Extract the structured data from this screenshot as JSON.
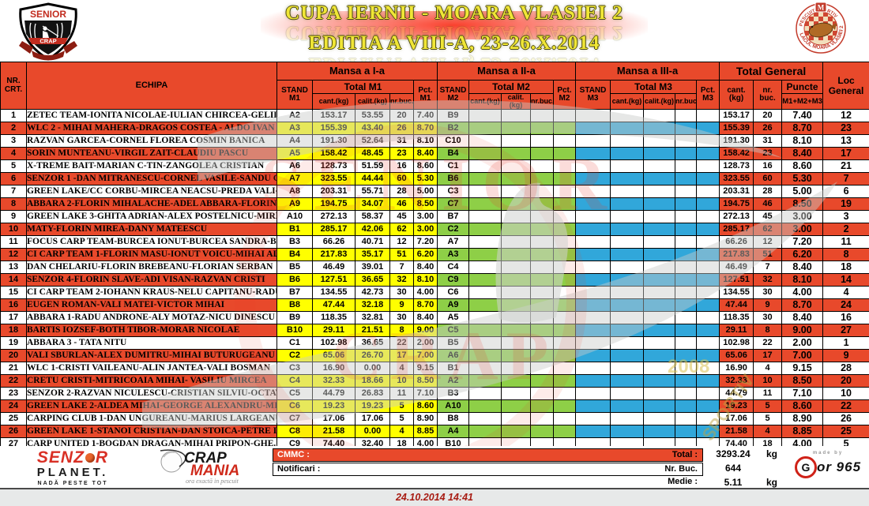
{
  "title": {
    "line1": "CUPA IERNII - MOARA VLASIEI 2",
    "line2": "EDITIA  A VIII-A, 23-26.X.2014"
  },
  "logos": {
    "senior_crap": {
      "top": "SENIOR",
      "banner": "CRAP"
    },
    "lake_badge": {
      "arc_top": "PESCUIT SPORTIV",
      "arc_bottom": "LACUL MOARA VLASIEI 2",
      "crest": "M"
    },
    "senzor_planet": {
      "line1a": "SENZ",
      "line1b": "R",
      "line2": "PLANET.",
      "line3": "NADĂ PESTE TOT"
    },
    "crap_mania": {
      "word1": "CRAP",
      "word2": "MANIA",
      "tagline": "ora exactă in pescuit"
    },
    "gor": {
      "made_by": "made by",
      "g": "G",
      "rest": "or 965"
    }
  },
  "watermark": {
    "word1": "SENIOR",
    "word2": "CRAP",
    "year": "2008",
    "sportiv": "SPORTIV"
  },
  "table": {
    "headers": {
      "nr": "NR. CRT.",
      "echipa": "ECHIPA",
      "mansa1": "Mansa a I-a",
      "mansa2": "Mansa a II-a",
      "mansa3": "Mansa a III-a",
      "total_general": "Total General",
      "stand_m1": "STAND M1",
      "total_m1": "Total M1",
      "pct_m1": "Pct. M1",
      "stand_m2": "STAND M2",
      "total_m2": "Total M2",
      "pct_m2": "Pct. M2",
      "stand_m3": "STAND M3",
      "total_m3": "Total M3",
      "pct_m3": "Pct. M3",
      "cant": "cant.(kg)",
      "calit": "calit.(kg)",
      "nrbuc": "nr.buc.",
      "tg_cant": "cant. (kg)",
      "tg_nrbuc": "nr. buc.",
      "puncte": "Puncte",
      "puncte_sub": "M1+M2+M3",
      "loc": "Loc General"
    },
    "rows": [
      {
        "nr": "1",
        "team": "ZETEC TEAM-IONITA NICOLAE-IULIAN CHIRCEA-GELIL MORRIS",
        "m1": {
          "stand": "A2",
          "cant": "153.17",
          "calit": "53.55",
          "buc": "20",
          "pct": "7.40"
        },
        "m2": {
          "stand": "B9"
        },
        "tg": {
          "cant": "153.17",
          "buc": "20",
          "pct": "7.40"
        },
        "loc": "12"
      },
      {
        "nr": "2",
        "team": "WLC 2 - MIHAI MAHERA-DRAGOS COSTEA - ALDO IVAN",
        "m1": {
          "stand": "A3",
          "cant": "155.39",
          "calit": "43.40",
          "buc": "26",
          "pct": "8.70"
        },
        "m2": {
          "stand": "B2"
        },
        "tg": {
          "cant": "155.39",
          "buc": "26",
          "pct": "8.70"
        },
        "loc": "23"
      },
      {
        "nr": "3",
        "team": "RAZVAN GARCEA-CORNEL FLOREA COSMIN BANICA",
        "m1": {
          "stand": "A4",
          "cant": "191.30",
          "calit": "52.64",
          "buc": "31",
          "pct": "8.10"
        },
        "m2": {
          "stand": "C10"
        },
        "tg": {
          "cant": "191.30",
          "buc": "31",
          "pct": "8.10"
        },
        "loc": "13"
      },
      {
        "nr": "4",
        "team": "SORIN MUNTEANU-VIRGIL ZAIT-CLAUDIU PASCU",
        "m1": {
          "stand": "A5",
          "cant": "158.42",
          "calit": "48.45",
          "buc": "23",
          "pct": "8.40"
        },
        "m2": {
          "stand": "B4"
        },
        "tg": {
          "cant": "158.42",
          "buc": "23",
          "pct": "8.40"
        },
        "loc": "17"
      },
      {
        "nr": "5",
        "team": "X-TREME BAIT-MARIAN C-TIN-ZANGOLEA CRISTIAN",
        "m1": {
          "stand": "A6",
          "cant": "128.73",
          "calit": "51.59",
          "buc": "16",
          "pct": "8.60"
        },
        "m2": {
          "stand": "C1"
        },
        "tg": {
          "cant": "128.73",
          "buc": "16",
          "pct": "8.60"
        },
        "loc": "21"
      },
      {
        "nr": "6",
        "team": "SENZOR 1 -DAN MITRANESCU-CORNEL VASILE-SANDU CORNEL",
        "m1": {
          "stand": "A7",
          "cant": "323.55",
          "calit": "44.44",
          "buc": "60",
          "pct": "5.30"
        },
        "m2": {
          "stand": "B6"
        },
        "tg": {
          "cant": "323.55",
          "buc": "60",
          "pct": "5.30"
        },
        "loc": "7"
      },
      {
        "nr": "7",
        "team": "GREEN LAKE/CC CORBU-MIRCEA NEACSU-PREDA VALI-DAN ARG",
        "m1": {
          "stand": "A8",
          "cant": "203.31",
          "calit": "55.71",
          "buc": "28",
          "pct": "5.00"
        },
        "m2": {
          "stand": "C3"
        },
        "tg": {
          "cant": "203.31",
          "buc": "28",
          "pct": "5.00"
        },
        "loc": "6"
      },
      {
        "nr": "8",
        "team": "ABBARA 2-FLORIN MIHALACHE-ADEL ABBARA-FLORIN PETCU",
        "m1": {
          "stand": "A9",
          "cant": "194.75",
          "calit": "34.07",
          "buc": "46",
          "pct": "8.50"
        },
        "m2": {
          "stand": "C7"
        },
        "tg": {
          "cant": "194.75",
          "buc": "46",
          "pct": "8.50"
        },
        "loc": "19"
      },
      {
        "nr": "9",
        "team": "GREEN LAKE 3-GHITA ADRIAN-ALEX POSTELNICU-MIREA CATALI",
        "m1": {
          "stand": "A10",
          "cant": "272.13",
          "calit": "58.37",
          "buc": "45",
          "pct": "3.00"
        },
        "m2": {
          "stand": "B7"
        },
        "tg": {
          "cant": "272.13",
          "buc": "45",
          "pct": "3.00"
        },
        "loc": "3"
      },
      {
        "nr": "10",
        "team": "MATY-FLORIN MIREA-DANY MATEESCU",
        "m1": {
          "stand": "B1",
          "cant": "285.17",
          "calit": "42.06",
          "buc": "62",
          "pct": "3.00"
        },
        "m2": {
          "stand": "C2"
        },
        "tg": {
          "cant": "285.17",
          "buc": "62",
          "pct": "3.00"
        },
        "loc": "2"
      },
      {
        "nr": "11",
        "team": "FOCUS CARP TEAM-BURCEA IONUT-BURCEA SANDRA-BEBE MOIS",
        "m1": {
          "stand": "B3",
          "cant": "66.26",
          "calit": "40.71",
          "buc": "12",
          "pct": "7.20"
        },
        "m2": {
          "stand": "A7"
        },
        "tg": {
          "cant": "66.26",
          "buc": "12",
          "pct": "7.20"
        },
        "loc": "11"
      },
      {
        "nr": "12",
        "team": "CI CARP TEAM 1-FLORIN MASU-IONUT VOICU-MIHAI ALEX.",
        "m1": {
          "stand": "B4",
          "cant": "217.83",
          "calit": "35.17",
          "buc": "51",
          "pct": "6.20"
        },
        "m2": {
          "stand": "A3"
        },
        "tg": {
          "cant": "217.83",
          "buc": "51",
          "pct": "6.20"
        },
        "loc": "8"
      },
      {
        "nr": "13",
        "team": "DAN CHELARIU-FLORIN BREBEANU-FLORIAN SERBAN",
        "m1": {
          "stand": "B5",
          "cant": "46.49",
          "calit": "39.01",
          "buc": "7",
          "pct": "8.40"
        },
        "m2": {
          "stand": "C4"
        },
        "tg": {
          "cant": "46.49",
          "buc": "7",
          "pct": "8.40"
        },
        "loc": "18"
      },
      {
        "nr": "14",
        "team": "SENZOR 4-FLORIN SLAVE-ADI VISAN-RAZVAN CRISTI",
        "m1": {
          "stand": "B6",
          "cant": "127.51",
          "calit": "36.65",
          "buc": "32",
          "pct": "8.10"
        },
        "m2": {
          "stand": "C9"
        },
        "tg": {
          "cant": "127.51",
          "buc": "32",
          "pct": "8.10"
        },
        "loc": "14"
      },
      {
        "nr": "15",
        "team": "CI CARP TEAM 2-IOHANN KRAUS-NELU CAPITANU-RADU BADIC.",
        "m1": {
          "stand": "B7",
          "cant": "134.55",
          "calit": "42.73",
          "buc": "30",
          "pct": "4.00"
        },
        "m2": {
          "stand": "C6"
        },
        "tg": {
          "cant": "134.55",
          "buc": "30",
          "pct": "4.00"
        },
        "loc": "4"
      },
      {
        "nr": "16",
        "team": "EUGEN ROMAN-VALI MATEI-VICTOR MIHAI",
        "m1": {
          "stand": "B8",
          "cant": "47.44",
          "calit": "32.18",
          "buc": "9",
          "pct": "8.70"
        },
        "m2": {
          "stand": "A9"
        },
        "tg": {
          "cant": "47.44",
          "buc": "9",
          "pct": "8.70"
        },
        "loc": "24"
      },
      {
        "nr": "17",
        "team": "ABBARA 1-RADU ANDRONE-ALY MOTAZ-NICU DINESCU",
        "m1": {
          "stand": "B9",
          "cant": "118.35",
          "calit": "32.81",
          "buc": "30",
          "pct": "8.40"
        },
        "m2": {
          "stand": "A5"
        },
        "tg": {
          "cant": "118.35",
          "buc": "30",
          "pct": "8.40"
        },
        "loc": "16"
      },
      {
        "nr": "18",
        "team": "BARTIS IOZSEF-BOTH TIBOR-MORAR NICOLAE",
        "m1": {
          "stand": "B10",
          "cant": "29.11",
          "calit": "21.51",
          "buc": "8",
          "pct": "9.00"
        },
        "m2": {
          "stand": "C5"
        },
        "tg": {
          "cant": "29.11",
          "buc": "8",
          "pct": "9.00"
        },
        "loc": "27"
      },
      {
        "nr": "19",
        "team": "ABBARA 3 - TATA NITU",
        "m1": {
          "stand": "C1",
          "cant": "102.98",
          "calit": "36.65",
          "buc": "22",
          "pct": "2.00"
        },
        "m2": {
          "stand": "B5"
        },
        "tg": {
          "cant": "102.98",
          "buc": "22",
          "pct": "2.00"
        },
        "loc": "1"
      },
      {
        "nr": "20",
        "team": "VALI SBURLAN-ALEX DUMITRU-MIHAI BUTURUGEANU",
        "m1": {
          "stand": "C2",
          "cant": "65.06",
          "calit": "26.70",
          "buc": "17",
          "pct": "7.00"
        },
        "m2": {
          "stand": "A6"
        },
        "tg": {
          "cant": "65.06",
          "buc": "17",
          "pct": "7.00"
        },
        "loc": "9"
      },
      {
        "nr": "21",
        "team": "WLC 1-CRISTI VAILEANU-ALIN JANTEA-VALI BOSMAN",
        "m1": {
          "stand": "C3",
          "cant": "16.90",
          "calit": "0.00",
          "buc": "4",
          "pct": "9.15"
        },
        "m2": {
          "stand": "B1"
        },
        "tg": {
          "cant": "16.90",
          "buc": "4",
          "pct": "9.15"
        },
        "loc": "28"
      },
      {
        "nr": "22",
        "team": "CRETU CRISTI-MITRICOAIA MIHAI- VASILIU MIRCEA",
        "m1": {
          "stand": "C4",
          "cant": "32.33",
          "calit": "18.66",
          "buc": "10",
          "pct": "8.50"
        },
        "m2": {
          "stand": "A2"
        },
        "tg": {
          "cant": "32.33",
          "buc": "10",
          "pct": "8.50"
        },
        "loc": "20"
      },
      {
        "nr": "23",
        "team": "SENZOR 2-RAZVAN NICULESCU-CRISTIAN SILVIU-OCTAVIAN VAL",
        "m1": {
          "stand": "C5",
          "cant": "44.79",
          "calit": "26.83",
          "buc": "11",
          "pct": "7.10"
        },
        "m2": {
          "stand": "B3"
        },
        "tg": {
          "cant": "44.79",
          "buc": "11",
          "pct": "7.10"
        },
        "loc": "10"
      },
      {
        "nr": "24",
        "team": "GREEN LAKE 2-ALDEA MIHAI-GEORGE ALEXANDRU-MIHAI MLAD",
        "m1": {
          "stand": "C6",
          "cant": "19.23",
          "calit": "19.23",
          "buc": "5",
          "pct": "8.60"
        },
        "m2": {
          "stand": "A10"
        },
        "tg": {
          "cant": "19.23",
          "buc": "5",
          "pct": "8.60"
        },
        "loc": "22"
      },
      {
        "nr": "25",
        "team": "CARPING CLUB 1-DAN UNGUREANU-MARIUS LARGEANU",
        "m1": {
          "stand": "C7",
          "cant": "17.06",
          "calit": "17.06",
          "buc": "5",
          "pct": "8.90"
        },
        "m2": {
          "stand": "B8"
        },
        "tg": {
          "cant": "17.06",
          "buc": "5",
          "pct": "8.90"
        },
        "loc": "26"
      },
      {
        "nr": "26",
        "team": "GREEN LAKE 1-STANOI CRISTIAN-DAN STOICA-PETRE IULIAN",
        "m1": {
          "stand": "C8",
          "cant": "21.58",
          "calit": "0.00",
          "buc": "4",
          "pct": "8.85"
        },
        "m2": {
          "stand": "A4"
        },
        "tg": {
          "cant": "21.58",
          "buc": "4",
          "pct": "8.85"
        },
        "loc": "25"
      },
      {
        "nr": "27",
        "team": "CARP UNITED 1-BOGDAN DRAGAN-MIHAI PRIPON-GHE. CLAMPA",
        "m1": {
          "stand": "C9",
          "cant": "74.40",
          "calit": "32.40",
          "buc": "18",
          "pct": "4.00"
        },
        "m2": {
          "stand": "B10"
        },
        "tg": {
          "cant": "74.40",
          "buc": "18",
          "pct": "4.00"
        },
        "loc": "5"
      },
      {
        "nr": "28",
        "team": "SENZOR 3-GEORGE SLAVE-VIO DAVID-EMIL PARASCHIV",
        "m1": {
          "stand": "C10",
          "cant": "45.45",
          "calit": "21.84",
          "buc": "12",
          "pct": "8.10"
        },
        "m2": {
          "stand": "A8"
        },
        "tg": {
          "cant": "45.45",
          "buc": "12",
          "pct": "8.10"
        },
        "loc": "15"
      }
    ]
  },
  "footer": {
    "cmmc_label": "CMMC :",
    "total_label": "Total :",
    "total_value": "3293.24",
    "total_unit": "kg",
    "notificari_label": "Notificari :",
    "nrbuc_label": "Nr. Buc.",
    "nrbuc_value": "644",
    "medie_label": "Medie :",
    "medie_value": "5.11",
    "medie_unit": "kg",
    "datetime": "24.10.2014 14:41"
  }
}
